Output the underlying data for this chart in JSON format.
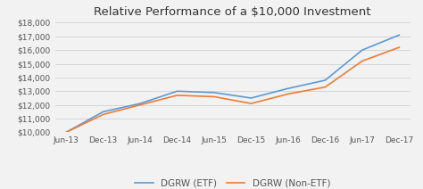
{
  "title": "Relative Performance of a $10,000 Investment",
  "x_labels": [
    "Jun-13",
    "Dec-13",
    "Jun-14",
    "Dec-14",
    "Jun-15",
    "Dec-15",
    "Jun-16",
    "Dec-16",
    "Jun-17",
    "Dec-17"
  ],
  "etf_values": [
    10000,
    11500,
    12100,
    13000,
    12900,
    12500,
    13200,
    13800,
    16000,
    17100
  ],
  "non_etf_values": [
    10000,
    11300,
    12000,
    12700,
    12600,
    12100,
    12800,
    13300,
    15200,
    16200
  ],
  "etf_color": "#5B9BD5",
  "non_etf_color": "#ED7D31",
  "etf_label": "DGRW (ETF)",
  "non_etf_label": "DGRW (Non-ETF)",
  "ylim": [
    10000,
    18000
  ],
  "yticks": [
    10000,
    11000,
    12000,
    13000,
    14000,
    15000,
    16000,
    17000,
    18000
  ],
  "background_color": "#f2f2f2",
  "plot_bg_color": "#f2f2f2",
  "grid_color": "#d0d0d0",
  "title_fontsize": 9.5,
  "legend_fontsize": 7.5,
  "tick_fontsize": 6.5,
  "linewidth": 1.2
}
